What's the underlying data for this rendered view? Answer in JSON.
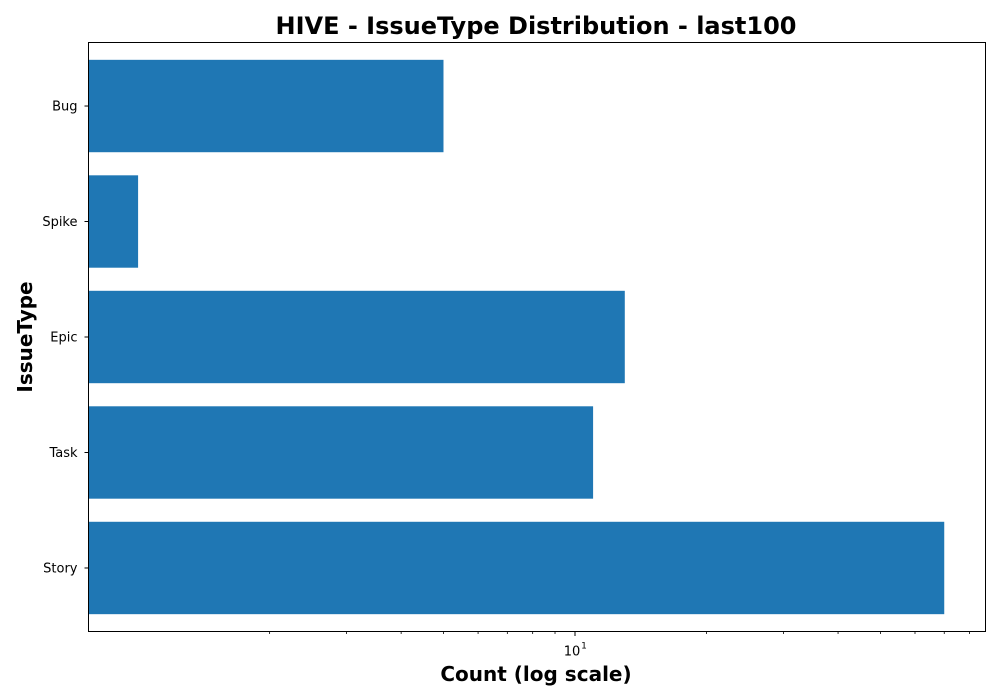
{
  "chart_data": {
    "type": "bar",
    "orientation": "horizontal",
    "title": "HIVE - IssueType Distribution - last100",
    "xlabel": "Count (log scale)",
    "ylabel": "IssueType",
    "xscale": "log",
    "xlim": [
      0.77,
      87
    ],
    "x_major_ticks": [
      {
        "value": 10,
        "base": "10",
        "exponent": "1"
      }
    ],
    "x_minor_ticks": [
      2,
      3,
      4,
      5,
      6,
      7,
      8,
      9,
      20,
      30,
      40,
      50,
      60,
      70,
      80
    ],
    "categories": [
      "Story",
      "Task",
      "Epic",
      "Spike",
      "Bug"
    ],
    "values": [
      70,
      11,
      13,
      1,
      5
    ],
    "bar_color": "#1f77b4",
    "grid": false,
    "legend": "none"
  }
}
